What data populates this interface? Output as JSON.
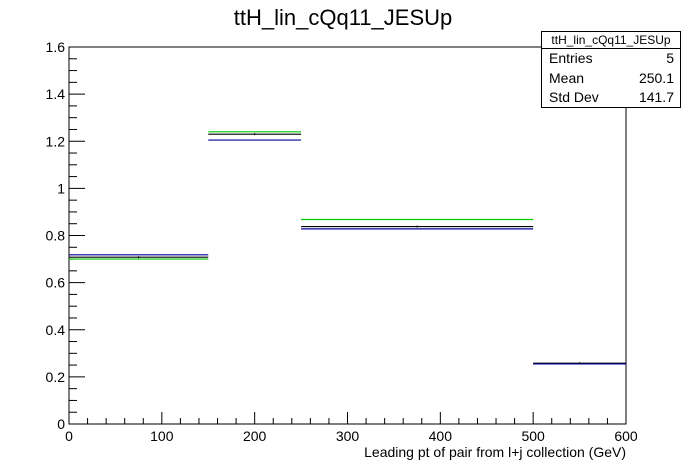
{
  "chart_data": {
    "type": "histogram",
    "title": "ttH_lin_cQq11_JESUp",
    "xlabel": "Leading pt of pair from l+j collection (GeV)",
    "ylabel": "",
    "xlim": [
      0,
      600
    ],
    "ylim": [
      0,
      1.6
    ],
    "x_ticks": [
      "0",
      "100",
      "200",
      "300",
      "400",
      "500",
      "600"
    ],
    "y_ticks": [
      "0",
      "0.2",
      "0.4",
      "0.6",
      "0.8",
      "1",
      "1.2",
      "1.4",
      "1.6"
    ],
    "bin_edges": [
      0,
      150,
      250,
      500,
      600
    ],
    "series": [
      {
        "color": "#00cc00",
        "values": [
          0.7,
          1.24,
          0.868,
          0.255
        ]
      },
      {
        "color": "#000000",
        "values": [
          0.708,
          1.23,
          0.838,
          0.258
        ]
      },
      {
        "color": "#000099",
        "values": [
          0.718,
          1.205,
          0.828,
          0.255
        ]
      }
    ],
    "grid": false,
    "legend": "none"
  },
  "stats_box": {
    "title": "ttH_lin_cQq11_JESUp",
    "rows": [
      {
        "label": "Entries",
        "value": "5"
      },
      {
        "label": "Mean",
        "value": "250.1"
      },
      {
        "label": "Std Dev",
        "value": "141.7"
      }
    ]
  }
}
